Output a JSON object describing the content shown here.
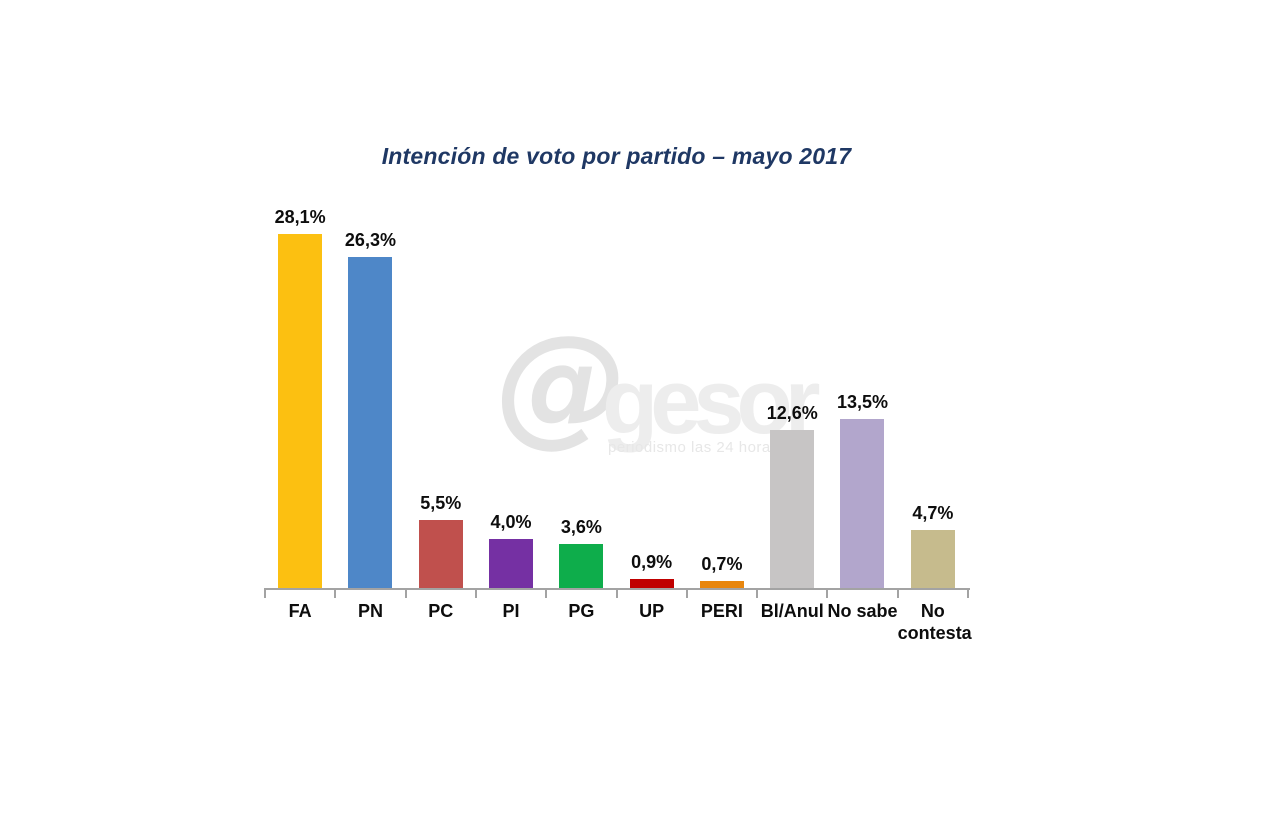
{
  "title": {
    "text": "Intención de voto por partido – mayo 2017",
    "color": "#1F3864"
  },
  "watermark": {
    "at": "@",
    "name": "gesor",
    "tagline": "periodismo las 24 horas"
  },
  "chart_data": {
    "type": "bar",
    "title": "Intención de voto por partido – mayo 2017",
    "categories": [
      "FA",
      "PN",
      "PC",
      "PI",
      "PG",
      "UP",
      "PERI",
      "Bl/Anul",
      "No sabe",
      "No contesta"
    ],
    "values": [
      28.1,
      26.3,
      5.5,
      4.0,
      3.6,
      0.9,
      0.7,
      12.6,
      13.5,
      4.7
    ],
    "value_labels": [
      "28,1%",
      "26,3%",
      "5,5%",
      "4,0%",
      "3,6%",
      "0,9%",
      "0,7%",
      "12,6%",
      "13,5%",
      "4,7%"
    ],
    "bar_colors": [
      "#FCC011",
      "#4E87C8",
      "#C0504D",
      "#7530A3",
      "#0EAD4B",
      "#C00000",
      "#E8860D",
      "#C7C5C5",
      "#B2A6CC",
      "#C6BB8D"
    ],
    "xlabel": "",
    "ylabel": "",
    "ylim": [
      0,
      30
    ],
    "grid": false,
    "legend": false,
    "axis_color": "#A3A3A3",
    "label_color": "#0D0D0D"
  }
}
